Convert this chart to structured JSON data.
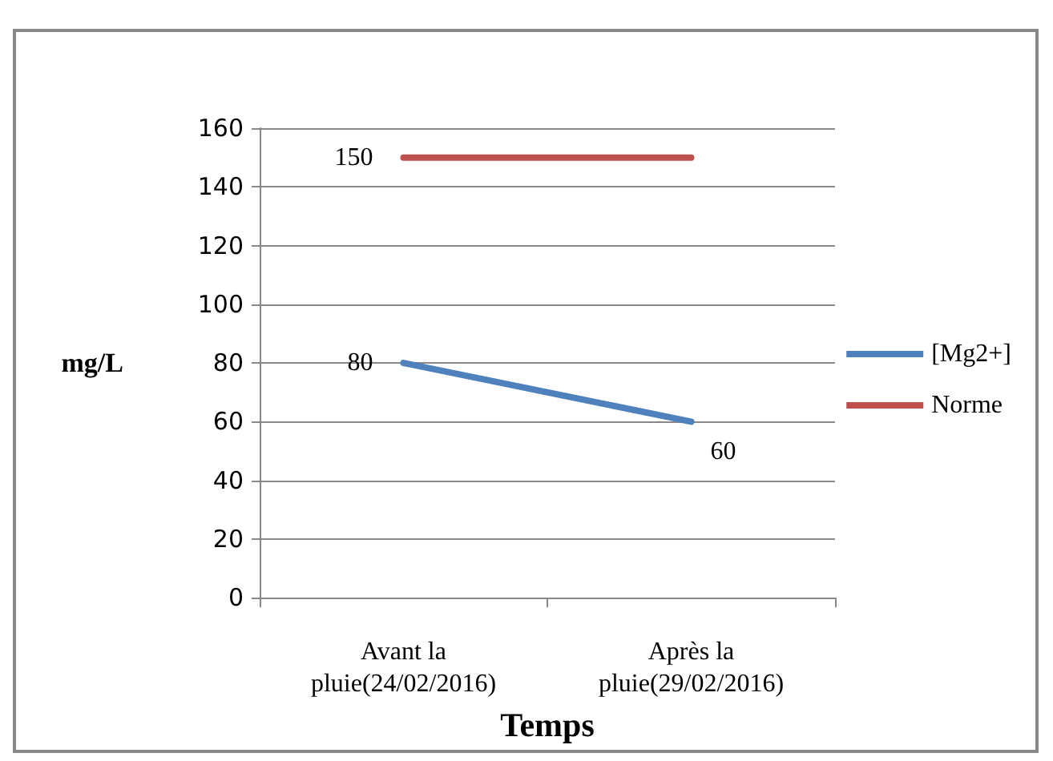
{
  "chart_data": {
    "type": "line",
    "xlabel": "Temps",
    "ylabel": "mg/L",
    "categories": [
      "Avant la\npluie(24/02/2016)",
      "Après la\npluie(29/02/2016)"
    ],
    "series": [
      {
        "name": "[Mg2+]",
        "color": "#4f81bd",
        "values": [
          80,
          60
        ],
        "value_labels": [
          "80",
          "60"
        ]
      },
      {
        "name": "Norme",
        "color": "#c0504d",
        "values": [
          150,
          150
        ],
        "value_labels": [
          "150",
          null
        ]
      }
    ],
    "ylim": [
      0,
      160
    ],
    "yticks": [
      0,
      20,
      40,
      60,
      80,
      100,
      120,
      140,
      160
    ],
    "grid": "y",
    "legend": "right",
    "marker": "none",
    "line_style": "solid"
  }
}
